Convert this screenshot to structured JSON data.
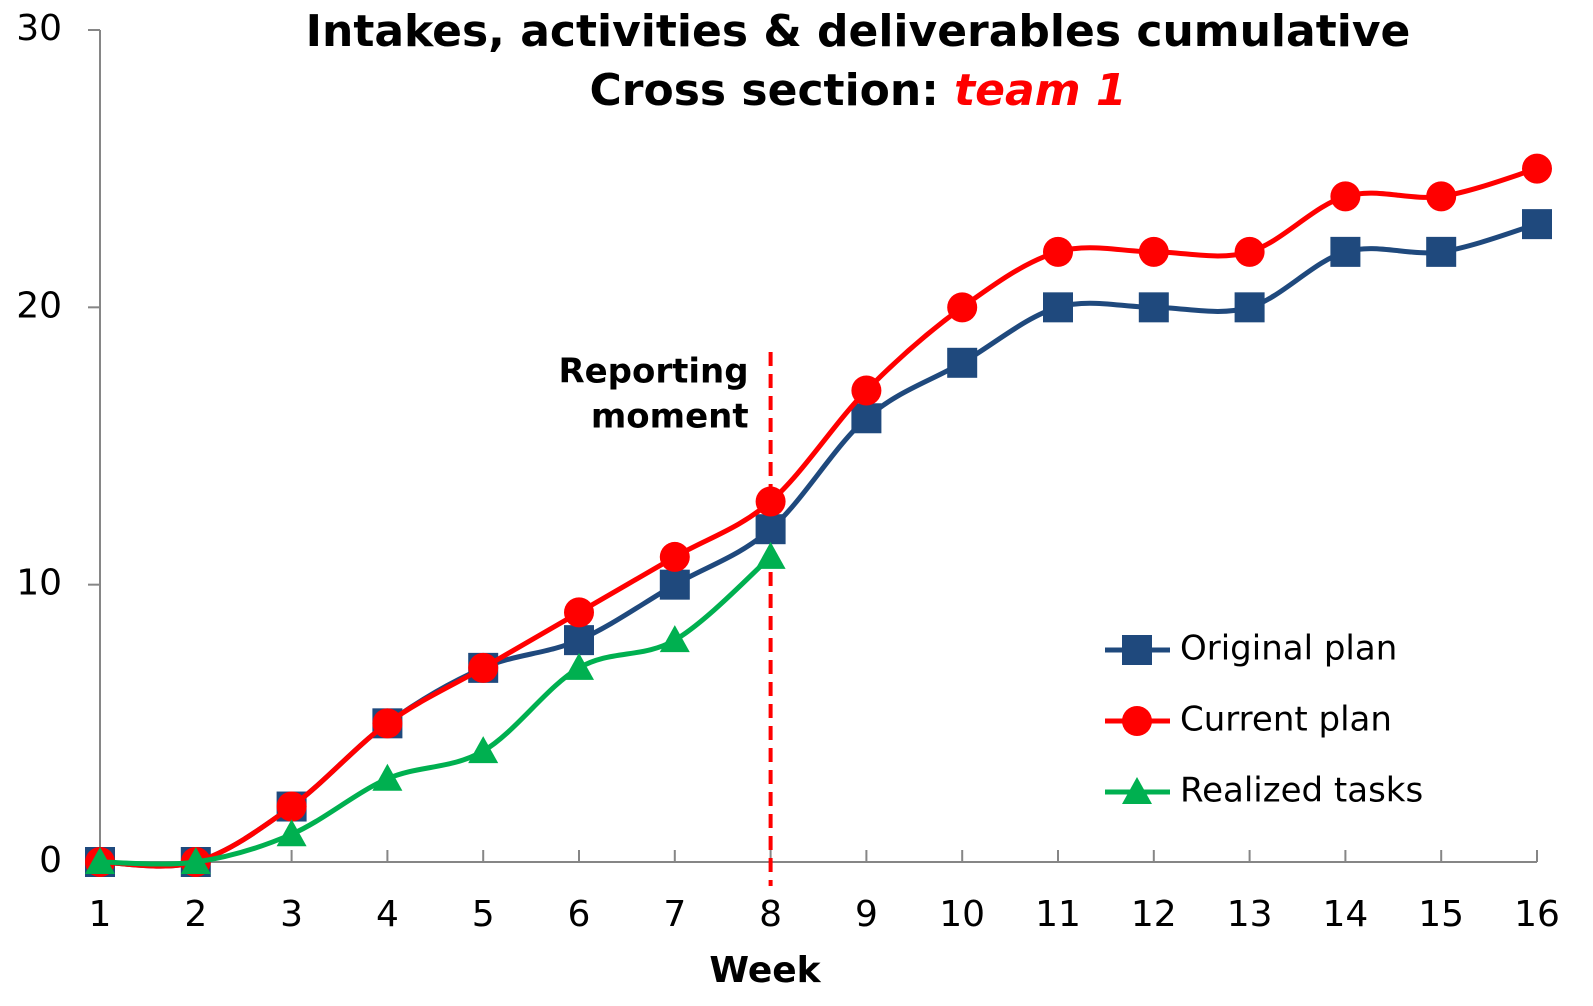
{
  "chart_data": {
    "type": "line",
    "title": "Intakes, activities & deliverables cumulative",
    "subtitle": "Cross section:",
    "subtitle_highlight": "team 1",
    "x_label": "Week",
    "categories": [
      "1",
      "2",
      "3",
      "4",
      "5",
      "6",
      "7",
      "8",
      "9",
      "10",
      "11",
      "12",
      "13",
      "14",
      "15",
      "16"
    ],
    "series": [
      {
        "name": "Original plan",
        "color": "#1f497d",
        "marker": "square",
        "values": [
          0,
          0,
          2,
          5,
          7,
          8,
          10,
          12,
          16,
          18,
          20,
          20,
          20,
          22,
          22,
          23
        ]
      },
      {
        "name": "Current plan",
        "color": "#ff0000",
        "marker": "circle",
        "values": [
          0,
          0,
          2,
          5,
          7,
          9,
          11,
          13,
          17,
          20,
          22,
          22,
          22,
          24,
          24,
          25
        ]
      },
      {
        "name": "Realized tasks",
        "color": "#00b050",
        "marker": "triangle",
        "values": [
          0,
          0,
          1,
          3,
          4,
          7,
          8,
          11,
          null,
          null,
          null,
          null,
          null,
          null,
          null,
          null
        ]
      }
    ],
    "annotation": {
      "text": [
        "Reporting",
        "moment"
      ],
      "at": "8",
      "color": "#ff0000"
    },
    "ylim": [
      0,
      30
    ],
    "yticks": [
      0,
      10,
      20,
      30
    ],
    "legend": "right",
    "smooth": true
  }
}
